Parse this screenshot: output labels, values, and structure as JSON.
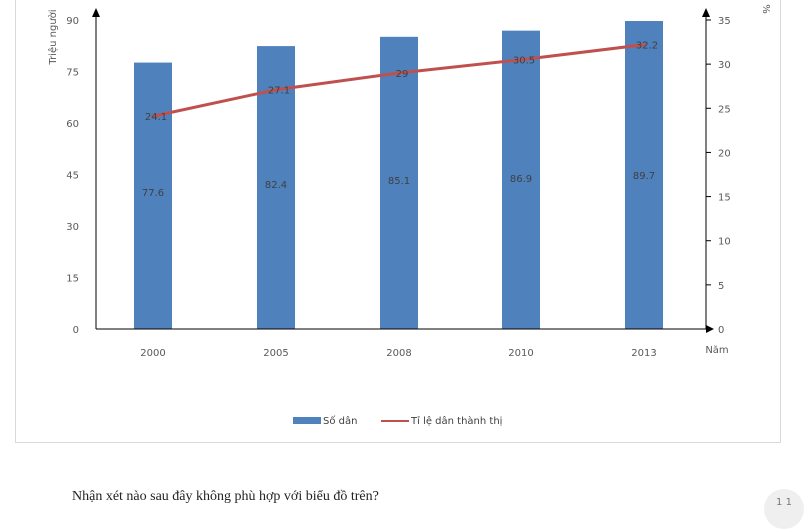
{
  "chart_data": {
    "type": "bar",
    "categories": [
      "2000",
      "2005",
      "2008",
      "2010",
      "2013"
    ],
    "series": [
      {
        "name": "Số dân",
        "type": "bar",
        "axis": "left",
        "color": "#4f81bd",
        "values": [
          77.6,
          82.4,
          85.1,
          86.9,
          89.7
        ]
      },
      {
        "name": "Tỉ lệ dân thành thị",
        "type": "line",
        "axis": "right",
        "color": "#c0504d",
        "values": [
          24.1,
          27.1,
          29,
          30.5,
          32.2
        ]
      }
    ],
    "ylabel": "Triệu người",
    "y2label": "%",
    "xlabel": "Năm",
    "ylim": [
      0,
      90
    ],
    "y2lim": [
      0,
      35
    ],
    "yticks": [
      "0",
      "15",
      "30",
      "45",
      "60",
      "75",
      "90"
    ],
    "y2ticks": [
      "0",
      "5",
      "10",
      "15",
      "20",
      "25",
      "30",
      "35"
    ],
    "legend": "bottom",
    "grid": false
  },
  "question": "Nhận xét nào sau đây không phù hợp với biểu đồ trên?",
  "badge": "1 1"
}
